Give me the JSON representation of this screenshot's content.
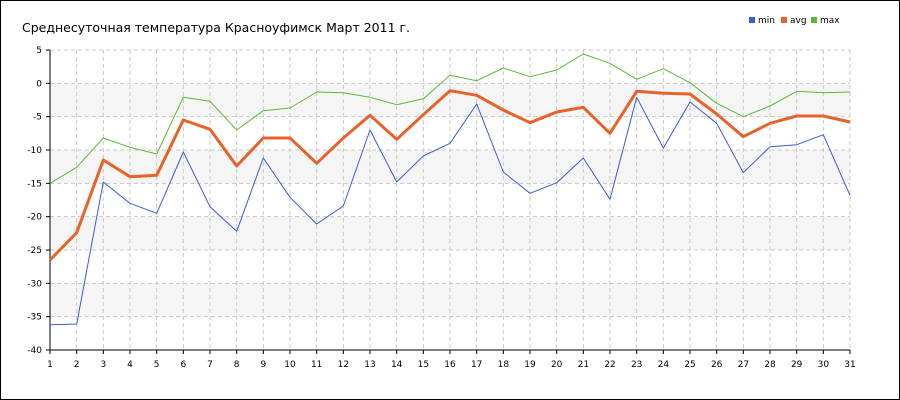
{
  "chart_data": {
    "type": "line",
    "title": "Среднесуточная температура Красноуфимск  Март 2011 г.",
    "xlabel": "",
    "ylabel": "",
    "categories": [
      "1",
      "2",
      "3",
      "4",
      "5",
      "6",
      "7",
      "8",
      "9",
      "10",
      "11",
      "12",
      "13",
      "14",
      "15",
      "16",
      "17",
      "18",
      "19",
      "20",
      "21",
      "22",
      "23",
      "24",
      "25",
      "26",
      "27",
      "28",
      "29",
      "30",
      "31"
    ],
    "ylim": [
      -40,
      5
    ],
    "yticks": [
      "5",
      "0",
      "-5",
      "-10",
      "-15",
      "-20",
      "-25",
      "-30",
      "-35",
      "-40"
    ],
    "grid": true,
    "legend_position": "top-right",
    "series": [
      {
        "name": "min",
        "color": "#3b5bd6",
        "values": [
          -36.2,
          -36.1,
          -14.8,
          -18.0,
          -19.5,
          -10.3,
          -18.5,
          -22.2,
          -11.2,
          -17.1,
          -21.1,
          -18.4,
          -7.0,
          -14.8,
          -10.9,
          -9.0,
          -3.1,
          -13.3,
          -16.5,
          -14.9,
          -11.2,
          -17.4,
          -2.1,
          -9.7,
          -2.8,
          -6.0,
          -13.4,
          -9.5,
          -9.2,
          -7.7,
          -16.8
        ]
      },
      {
        "name": "avg",
        "color": "#e8622a",
        "values": [
          -26.5,
          -22.4,
          -11.5,
          -14.0,
          -13.8,
          -5.5,
          -6.9,
          -12.4,
          -8.2,
          -8.2,
          -12.0,
          -8.2,
          -4.8,
          -8.4,
          -4.7,
          -1.1,
          -1.8,
          -4.0,
          -5.9,
          -4.3,
          -3.6,
          -7.5,
          -1.2,
          -1.5,
          -1.6,
          -4.6,
          -8.0,
          -6.0,
          -4.9,
          -4.9,
          -5.8
        ]
      },
      {
        "name": "max",
        "color": "#5cb83a",
        "values": [
          -15.0,
          -12.6,
          -8.2,
          -9.6,
          -10.6,
          -2.1,
          -2.7,
          -7.0,
          -4.1,
          -3.7,
          -1.3,
          -1.4,
          -2.1,
          -3.2,
          -2.3,
          1.2,
          0.4,
          2.3,
          1.0,
          2.0,
          4.4,
          3.0,
          0.6,
          2.2,
          0.1,
          -3.0,
          -5.0,
          -3.4,
          -1.2,
          -1.4,
          -1.3
        ]
      }
    ]
  }
}
